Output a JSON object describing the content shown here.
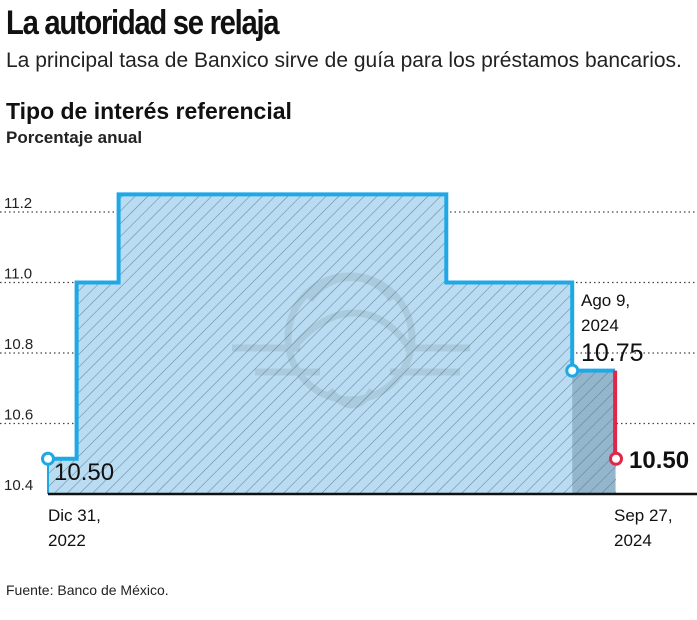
{
  "header": {
    "title": "La autoridad se relaja",
    "subtitle": "La principal tasa de Banxico sirve de guía para los préstamos bancarios."
  },
  "chart_title": "Tipo de interés referencial",
  "chart_unit": "Porcentaje anual",
  "source": "Fuente: Banco de México.",
  "chart_data": {
    "type": "area",
    "title": "Tipo de interés referencial",
    "ylabel": "Porcentaje anual",
    "ylim": [
      10.4,
      11.3
    ],
    "y_ticks": [
      10.4,
      10.6,
      10.8,
      11.0,
      11.2
    ],
    "y_tick_labels": [
      "10.4",
      "10.6",
      "10.8",
      "11.0",
      "11.2"
    ],
    "grid": true,
    "x_start_label": [
      "Dic 31,",
      "2022"
    ],
    "x_end_label": [
      "Sep 27,",
      "2024"
    ],
    "series": [
      {
        "x": [
          "2022-12-31",
          "2023-02-01",
          "2023-03-20",
          "2024-03-21",
          "2024-08-09",
          "2024-09-26",
          "2024-09-27"
        ],
        "values": [
          10.5,
          11.0,
          11.25,
          11.0,
          10.75,
          10.75,
          10.5
        ]
      }
    ],
    "annotations": [
      {
        "x": "2022-12-31",
        "y": 10.5,
        "label": "10.50"
      },
      {
        "x": "2024-08-09",
        "y": 10.75,
        "label_lines": [
          "Ago 9,",
          "2024"
        ],
        "value_label": "10.75"
      },
      {
        "x": "2024-09-27",
        "y": 10.5,
        "label": "10.50"
      }
    ],
    "colors": {
      "fill": "#b9dcf3",
      "line": "#1fa8e6",
      "recent_fill": "#93b6cc",
      "highlight": "#e0274a",
      "grid": "#444444"
    }
  }
}
